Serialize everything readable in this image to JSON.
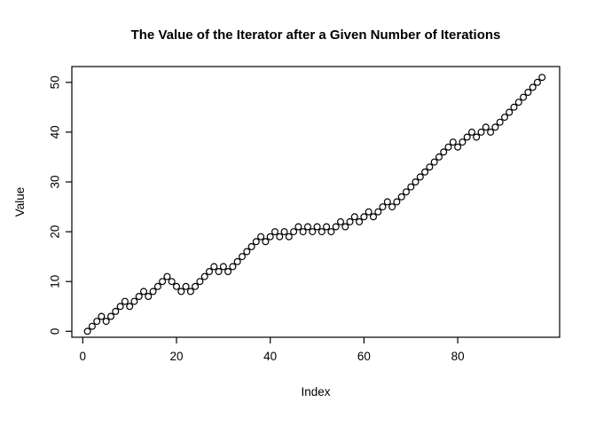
{
  "chart_data": {
    "type": "scatter",
    "title": "The Value of the Iterator after a Given Number of Iterations",
    "xlabel": "Index",
    "ylabel": "Value",
    "marker": "open-circle",
    "marker_color": "#000000",
    "background_color": "#ffffff",
    "grid": false,
    "legend": null,
    "xlim": [
      -2.9,
      101.9
    ],
    "ylim": [
      -2.0,
      53.0
    ],
    "xticks": [
      0,
      20,
      40,
      60,
      80
    ],
    "xtick_labels": [
      "0",
      "20",
      "40",
      "60",
      "80"
    ],
    "yticks": [
      0,
      10,
      20,
      30,
      40,
      50
    ],
    "ytick_labels": [
      "0",
      "10",
      "20",
      "30",
      "40",
      "50"
    ],
    "x": [
      1,
      2,
      3,
      4,
      5,
      6,
      7,
      8,
      9,
      10,
      11,
      12,
      13,
      14,
      15,
      16,
      17,
      18,
      19,
      20,
      21,
      22,
      23,
      24,
      25,
      26,
      27,
      28,
      29,
      30,
      31,
      32,
      33,
      34,
      35,
      36,
      37,
      38,
      39,
      40,
      41,
      42,
      43,
      44,
      45,
      46,
      47,
      48,
      49,
      50,
      51,
      52,
      53,
      54,
      55,
      56,
      57,
      58,
      59,
      60,
      61,
      62,
      63,
      64,
      65,
      66,
      67,
      68,
      69,
      70,
      71,
      72,
      73,
      74,
      75,
      76,
      77,
      78,
      79,
      80,
      81,
      82,
      83,
      84,
      85,
      86,
      87,
      88,
      89,
      90,
      91,
      92,
      93,
      94,
      95,
      96,
      97,
      98
    ],
    "values": [
      0,
      1,
      2,
      3,
      2,
      3,
      4,
      5,
      6,
      5,
      6,
      7,
      8,
      7,
      8,
      9,
      10,
      11,
      10,
      9,
      8,
      9,
      8,
      9,
      10,
      11,
      12,
      13,
      12,
      13,
      12,
      13,
      14,
      15,
      16,
      17,
      18,
      19,
      18,
      19,
      20,
      19,
      20,
      19,
      20,
      21,
      20,
      21,
      20,
      21,
      20,
      21,
      20,
      21,
      22,
      21,
      22,
      23,
      22,
      23,
      24,
      23,
      24,
      25,
      26,
      25,
      26,
      27,
      28,
      29,
      30,
      31,
      32,
      33,
      34,
      35,
      36,
      37,
      38,
      37,
      38,
      39,
      40,
      39,
      40,
      41,
      40,
      41,
      42,
      43,
      44,
      45,
      46,
      47,
      48,
      49,
      50,
      51
    ]
  }
}
